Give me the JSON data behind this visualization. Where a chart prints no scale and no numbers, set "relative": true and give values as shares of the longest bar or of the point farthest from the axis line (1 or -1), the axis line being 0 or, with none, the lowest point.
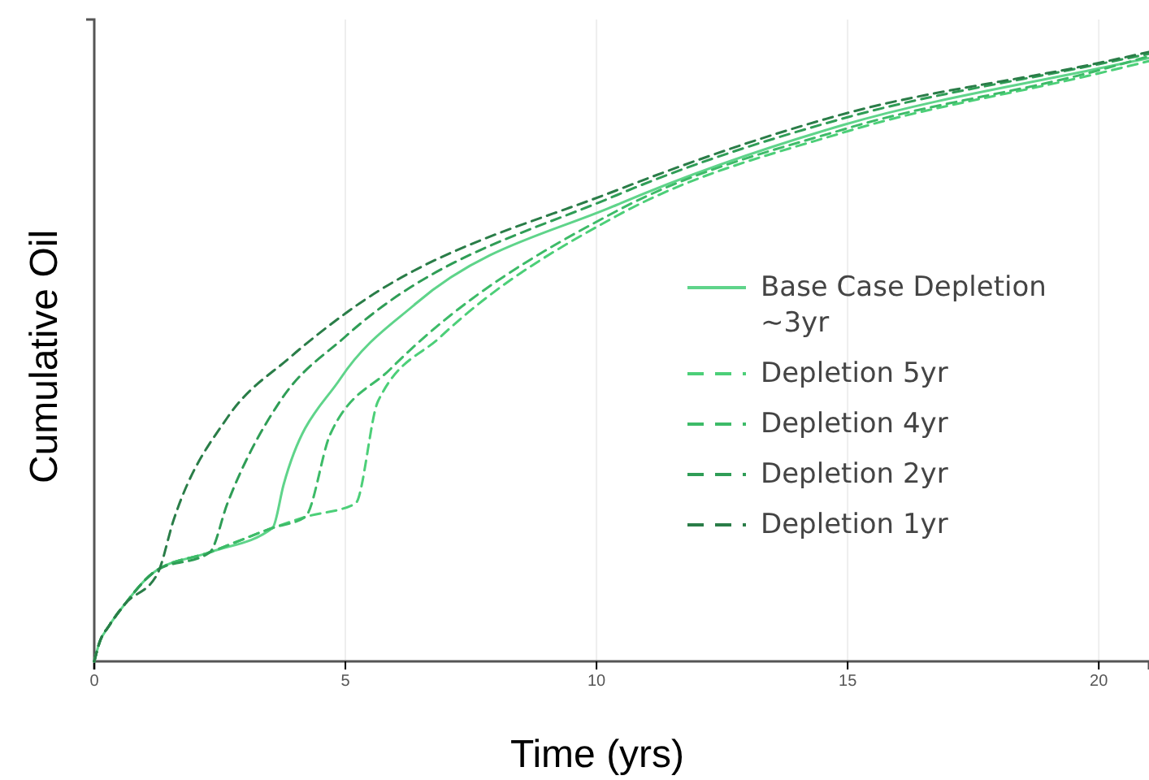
{
  "chart_data": {
    "type": "line",
    "xlabel": "Time (yrs)",
    "ylabel": "Cumulative Oil",
    "relative": true,
    "xlim": [
      0,
      21
    ],
    "xticks": [
      0,
      5,
      10,
      15,
      20
    ],
    "grid": "x",
    "legend": "right",
    "marker": "none",
    "series": [
      {
        "name": "Base Case Depletion ~3yr",
        "color": "#5fd48a",
        "line_style": "solid",
        "x": [
          0,
          0.1,
          0.3,
          0.6,
          1.2,
          2.3,
          3.55,
          3.77,
          4.9,
          6.4,
          10.4,
          14.9,
          20,
          21
        ],
        "values": [
          0,
          0.03,
          0.059,
          0.093,
          0.147,
          0.179,
          0.219,
          0.29,
          0.464,
          0.587,
          0.749,
          0.88,
          0.973,
          0.99
        ]
      },
      {
        "name": "Depletion 5yr",
        "color": "#4ccf78",
        "line_style": "dashed",
        "x": [
          0,
          0.1,
          0.3,
          0.6,
          1.2,
          2.3,
          3.55,
          4.2,
          5.2,
          5.65,
          6.9,
          10.4,
          15,
          20,
          21
        ],
        "values": [
          0,
          0.03,
          0.059,
          0.093,
          0.147,
          0.179,
          0.219,
          0.237,
          0.259,
          0.427,
          0.533,
          0.731,
          0.87,
          0.965,
          0.985
        ]
      },
      {
        "name": "Depletion 4yr",
        "color": "#3dbb68",
        "line_style": "dashed",
        "x": [
          0,
          0.1,
          0.3,
          0.6,
          1.2,
          2.3,
          3.55,
          4.2,
          4.7,
          5.9,
          10.4,
          15,
          20,
          21
        ],
        "values": [
          0,
          0.03,
          0.059,
          0.093,
          0.147,
          0.179,
          0.219,
          0.237,
          0.373,
          0.48,
          0.739,
          0.875,
          0.97,
          0.993
        ]
      },
      {
        "name": "Depletion 2yr",
        "color": "#2f9d56",
        "line_style": "dashed",
        "x": [
          0,
          0.1,
          0.3,
          0.6,
          1.2,
          2.3,
          2.65,
          3.7,
          5,
          10.4,
          15,
          20,
          21
        ],
        "values": [
          0,
          0.03,
          0.059,
          0.093,
          0.147,
          0.179,
          0.259,
          0.427,
          0.533,
          0.765,
          0.893,
          0.98,
          0.997
        ]
      },
      {
        "name": "Depletion 1yr",
        "color": "#2a7d48",
        "line_style": "dashed",
        "x": [
          0,
          0.1,
          0.3,
          0.6,
          1.26,
          1.58,
          2.65,
          3.9,
          5,
          10.4,
          15,
          20,
          21
        ],
        "values": [
          0,
          0.03,
          0.059,
          0.093,
          0.144,
          0.232,
          0.4,
          0.499,
          0.571,
          0.773,
          0.9,
          0.982,
          1
        ]
      }
    ]
  }
}
